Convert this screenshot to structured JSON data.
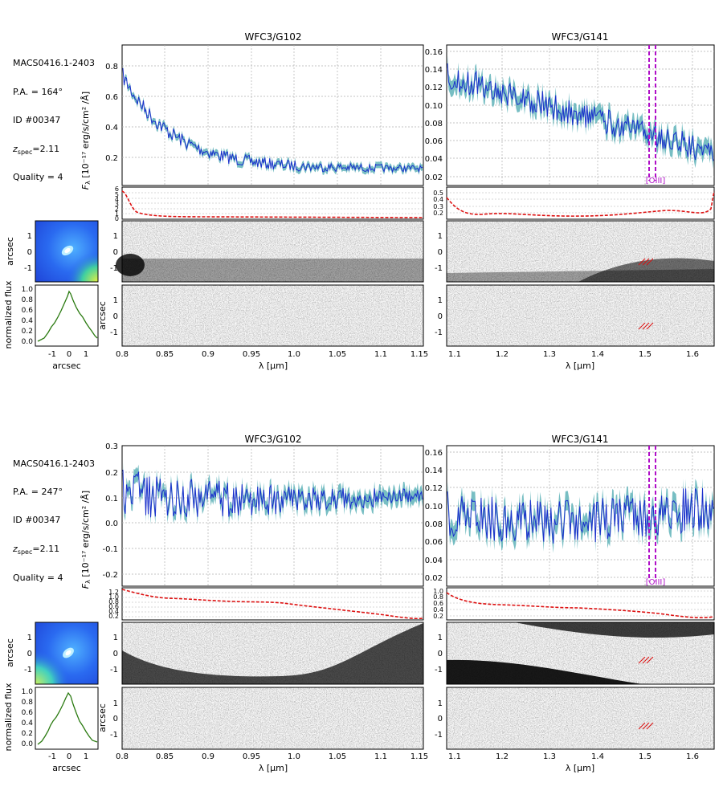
{
  "panels": [
    {
      "id": "top",
      "info": {
        "object": "MACS0416.1-2403",
        "pa_label": "P.A. = 164°",
        "id_label": "ID #00347",
        "zspec_symbol": "z",
        "zspec_sub": "spec",
        "zspec_value": "=2.11",
        "quality_label": "Quality = 4"
      },
      "thumb": {
        "ylabel": "arcsec",
        "yticks": [
          "1",
          "0",
          "-1"
        ]
      },
      "profile": {
        "ylabel": "normalized flux",
        "xlabel": "arcsec",
        "yticks": [
          "1.0",
          "0.8",
          "0.6",
          "0.4",
          "0.2",
          "0.0"
        ],
        "xticks": [
          "-1",
          "0",
          "1"
        ]
      },
      "g102": {
        "title": "WFC3/G102",
        "flux_yticks": [
          "0.8",
          "0.6",
          "0.4",
          "0.2"
        ],
        "contam_yticks": [
          "6",
          "5",
          "4",
          "3",
          "2",
          "1",
          "0"
        ],
        "twod_yticks": [
          "1",
          "0",
          "-1"
        ],
        "xticks": [
          "0.8",
          "0.85",
          "0.9",
          "0.95",
          "1.0",
          "1.05",
          "1.1",
          "1.15"
        ]
      },
      "g141": {
        "title": "WFC3/G141",
        "flux_yticks": [
          "0.16",
          "0.14",
          "0.12",
          "0.10",
          "0.08",
          "0.06",
          "0.04",
          "0.02"
        ],
        "contam_yticks": [
          "0.5",
          "0.4",
          "0.3",
          "0.2"
        ],
        "twod_yticks": [
          "1",
          "0",
          "-1"
        ],
        "xticks": [
          "1.1",
          "1.2",
          "1.3",
          "1.4",
          "1.5",
          "1.6"
        ],
        "line_label": "[OIII]"
      },
      "ylabel_main": "F",
      "ylabel_sub": "λ",
      "ylabel_units": " [10⁻¹⁷ erg/s/cm² /Å]",
      "twod_ylabel": "arcsec",
      "xlabel": "λ [μm]"
    },
    {
      "id": "bottom",
      "info": {
        "object": "MACS0416.1-2403",
        "pa_label": "P.A. = 247°",
        "id_label": "ID #00347",
        "zspec_symbol": "z",
        "zspec_sub": "spec",
        "zspec_value": "=2.11",
        "quality_label": "Quality = 4"
      },
      "thumb": {
        "ylabel": "arcsec",
        "yticks": [
          "1",
          "0",
          "-1"
        ]
      },
      "profile": {
        "ylabel": "normalized flux",
        "xlabel": "arcsec",
        "yticks": [
          "1.0",
          "0.8",
          "0.6",
          "0.4",
          "0.2",
          "0.0"
        ],
        "xticks": [
          "-1",
          "0",
          "1"
        ]
      },
      "g102": {
        "title": "WFC3/G102",
        "flux_yticks": [
          "0.3",
          "0.2",
          "0.1",
          "0.0",
          "-0.1",
          "-0.2"
        ],
        "contam_yticks": [
          "1.2",
          "1.0",
          "0.8",
          "0.6",
          "0.4",
          "0.2"
        ],
        "twod_yticks": [
          "1",
          "0",
          "-1"
        ],
        "xticks": [
          "0.8",
          "0.85",
          "0.9",
          "0.95",
          "1.0",
          "1.05",
          "1.1",
          "1.15"
        ]
      },
      "g141": {
        "title": "WFC3/G141",
        "flux_yticks": [
          "0.16",
          "0.14",
          "0.12",
          "0.10",
          "0.08",
          "0.06",
          "0.04",
          "0.02"
        ],
        "contam_yticks": [
          "1.0",
          "0.8",
          "0.6",
          "0.4",
          "0.2"
        ],
        "twod_yticks": [
          "1",
          "0",
          "-1"
        ],
        "xticks": [
          "1.1",
          "1.2",
          "1.3",
          "1.4",
          "1.5",
          "1.6"
        ],
        "line_label": "[OIII]"
      },
      "ylabel_main": "F",
      "ylabel_sub": "λ",
      "ylabel_units": " [10⁻¹⁷ erg/s/cm² /Å]",
      "twod_ylabel": "arcsec",
      "xlabel": "λ [μm]"
    }
  ],
  "colors": {
    "spectrum": "#1a2fcc",
    "error_band": "#5fb3b8",
    "contamination": "#dd1111",
    "line_marker": "#b010c8",
    "profile": "#2a7a10",
    "grid": "#b0b0b0"
  }
}
